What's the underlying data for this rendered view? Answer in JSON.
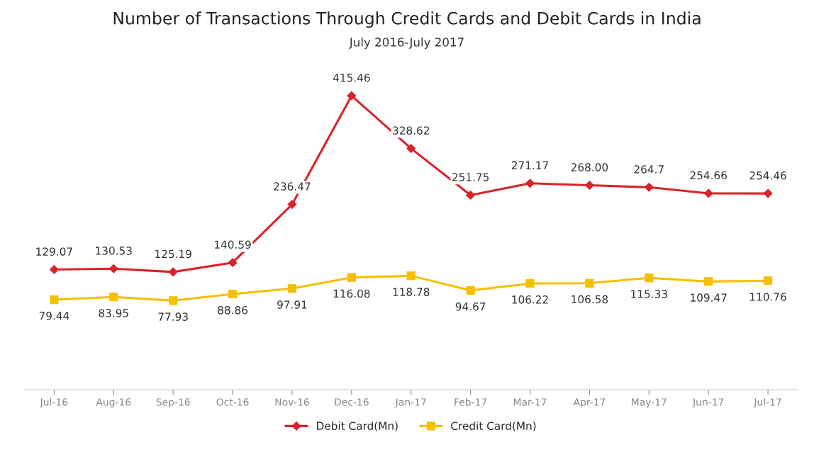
{
  "chart_data": {
    "type": "line",
    "title": "Number of Transactions Through Credit Cards and Debit Cards in India",
    "subtitle": "July 2016-July 2017",
    "categories": [
      "Jul-16",
      "Aug-16",
      "Sep-16",
      "Oct-16",
      "Nov-16",
      "Dec-16",
      "Jan-17",
      "Feb-17",
      "Mar-17",
      "Apr-17",
      "May-17",
      "Jun-17",
      "Jul-17"
    ],
    "series": [
      {
        "name": "Debit Card(Mn)",
        "color": "#d9232b",
        "marker": "diamond",
        "values": [
          129.07,
          130.53,
          125.19,
          140.59,
          236.47,
          415.46,
          328.62,
          251.75,
          271.17,
          268.0,
          264.7,
          254.66,
          254.46
        ],
        "value_labels": [
          "129.07",
          "130.53",
          "125.19",
          "140.59",
          "236.47",
          "415.46",
          "328.62",
          "251.75",
          "271.17",
          "268.00",
          "264.7",
          "254.66",
          "254.46"
        ]
      },
      {
        "name": "Credit Card(Mn)",
        "color": "#f5c000",
        "marker": "square",
        "values": [
          79.44,
          83.95,
          77.93,
          88.86,
          97.91,
          116.08,
          118.78,
          94.67,
          106.22,
          106.58,
          115.33,
          109.47,
          110.76
        ],
        "value_labels": [
          "79.44",
          "83.95",
          "77.93",
          "88.86",
          "97.91",
          "116.08",
          "118.78",
          "94.67",
          "106.22",
          "106.58",
          "115.33",
          "109.47",
          "110.76"
        ]
      }
    ],
    "legend": "bottom",
    "grid": false,
    "line_style": "solid"
  }
}
